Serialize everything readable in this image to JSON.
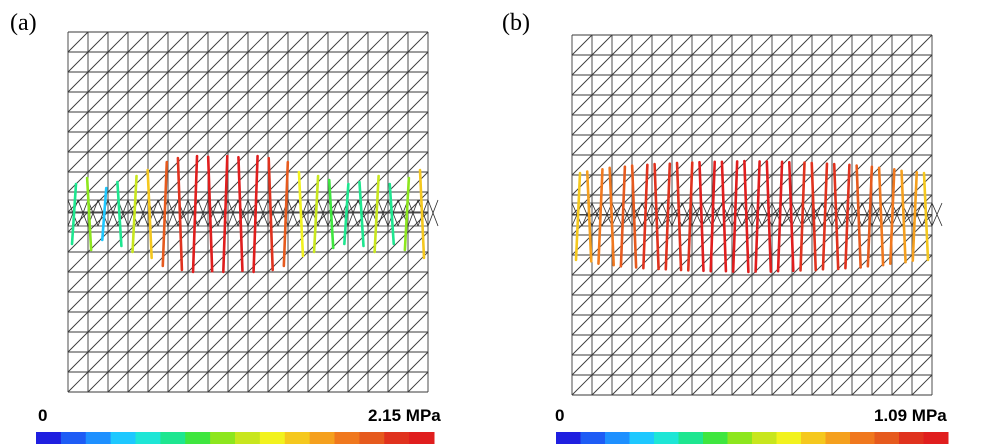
{
  "panels": [
    {
      "id": "a",
      "label": "(a)",
      "colorbar": {
        "min_label": "0",
        "max_label": "2.15 MPa"
      },
      "mesh_divisions": 18,
      "stress_lines": [
        0.3,
        0.45,
        0.2,
        0.35,
        0.5,
        0.65,
        0.85,
        0.95,
        1.0,
        0.98,
        1.0,
        0.97,
        1.0,
        0.95,
        0.85,
        0.6,
        0.5,
        0.4,
        0.3,
        0.35,
        0.5,
        0.3,
        0.45,
        0.65
      ]
    },
    {
      "id": "b",
      "label": "(b)",
      "colorbar": {
        "min_label": "0",
        "max_label": "1.09 MPa"
      },
      "mesh_divisions": 18,
      "stress_lines": [
        0.68,
        0.72,
        0.78,
        0.82,
        0.85,
        0.88,
        0.9,
        0.92,
        0.93,
        0.95,
        0.96,
        0.97,
        0.98,
        0.98,
        0.99,
        1.0,
        0.99,
        0.99,
        0.98,
        0.97,
        0.96,
        0.95,
        0.93,
        0.92,
        0.9,
        0.88,
        0.85,
        0.82,
        0.78,
        0.74,
        0.7,
        0.68
      ]
    }
  ],
  "colormap": [
    "#1f1fe0",
    "#1e5cf5",
    "#1e90ff",
    "#1ec8ff",
    "#1ee6d6",
    "#1ee690",
    "#3fe63f",
    "#8de61e",
    "#c8e61e",
    "#f2f21e",
    "#f5c81e",
    "#f5a01e",
    "#f0781e",
    "#e65a1e",
    "#e0321e",
    "#e01e1e"
  ]
}
